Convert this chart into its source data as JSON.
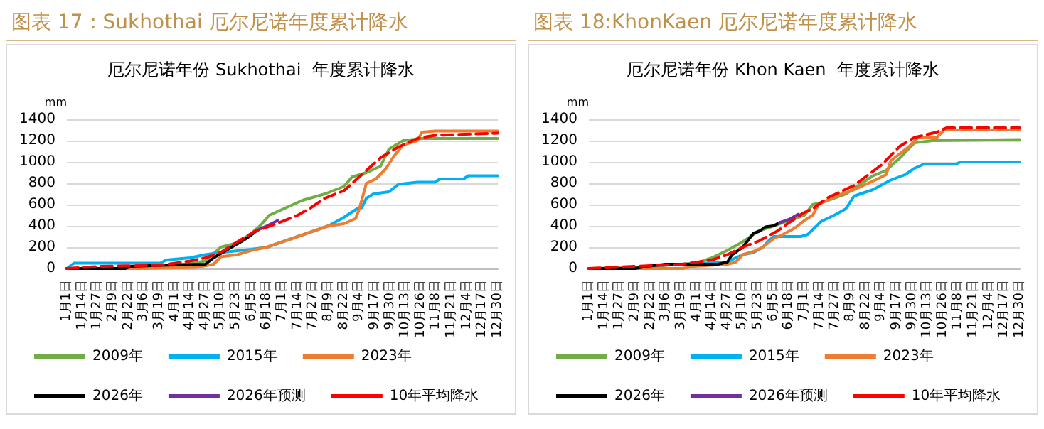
{
  "chart_data": [
    {
      "type": "line",
      "title": "图表 17：Sukhothai 厄尔尼诺年度累计降水",
      "subtitle": "厄尔尼诺年份 Sukhothai  年度累计降水",
      "ylabel": "mm",
      "xlim": [
        "--01-01",
        "--12-30"
      ],
      "ylim": [
        0,
        1400
      ],
      "yticks": [
        0,
        200,
        400,
        600,
        800,
        1000,
        1200,
        1400
      ],
      "xticks": [
        {
          "value": "--01-01",
          "label": "1月1日"
        },
        {
          "value": "--01-14",
          "label": "1月14日"
        },
        {
          "value": "--01-27",
          "label": "1月27日"
        },
        {
          "value": "--02-09",
          "label": "2月9日"
        },
        {
          "value": "--02-22",
          "label": "2月22日"
        },
        {
          "value": "--03-06",
          "label": "3月6日"
        },
        {
          "value": "--03-19",
          "label": "3月19日"
        },
        {
          "value": "--04-01",
          "label": "4月1日"
        },
        {
          "value": "--04-14",
          "label": "4月14日"
        },
        {
          "value": "--04-27",
          "label": "4月27日"
        },
        {
          "value": "--05-10",
          "label": "5月10日"
        },
        {
          "value": "--05-23",
          "label": "5月23日"
        },
        {
          "value": "--06-05",
          "label": "6月5日"
        },
        {
          "value": "--06-18",
          "label": "6月18日"
        },
        {
          "value": "--07-01",
          "label": "7月1日"
        },
        {
          "value": "--07-14",
          "label": "7月14日"
        },
        {
          "value": "--07-27",
          "label": "7月27日"
        },
        {
          "value": "--08-09",
          "label": "8月9日"
        },
        {
          "value": "--08-22",
          "label": "8月22日"
        },
        {
          "value": "--09-04",
          "label": "9月4日"
        },
        {
          "value": "--09-17",
          "label": "9月17日"
        },
        {
          "value": "--09-30",
          "label": "9月30日"
        },
        {
          "value": "--10-13",
          "label": "10月13日"
        },
        {
          "value": "--10-26",
          "label": "10月26日"
        },
        {
          "value": "--11-08",
          "label": "11月8日"
        },
        {
          "value": "--11-21",
          "label": "11月21日"
        },
        {
          "value": "--12-04",
          "label": "12月4日"
        },
        {
          "value": "--12-17",
          "label": "12月17日"
        },
        {
          "value": "--12-30",
          "label": "12月30日"
        }
      ],
      "grid": "y",
      "legend": "bottom",
      "marker": "none",
      "series": [
        {
          "name": "2009年",
          "color": "#70ad47",
          "x": [
            "--01-01",
            "--02-29",
            "--04-09",
            "--04-27",
            "--05-10",
            "--05-24",
            "--06-05",
            "--06-13",
            "--06-20",
            "--07-02",
            "--07-18",
            "--08-06",
            "--08-22",
            "--08-29",
            "--09-10",
            "--09-22",
            "--09-29",
            "--10-11",
            "--10-27",
            "--12-30"
          ],
          "values": [
            0,
            0,
            40,
            70,
            200,
            240,
            330,
            410,
            500,
            560,
            640,
            700,
            770,
            860,
            900,
            960,
            1120,
            1200,
            1220,
            1220
          ]
        },
        {
          "name": "2015年",
          "color": "#00b0f0",
          "x": [
            "--01-01",
            "--01-07",
            "--02-29",
            "--03-20",
            "--03-25",
            "--04-14",
            "--04-27",
            "--05-10",
            "--06-05",
            "--06-18",
            "--07-01",
            "--07-14",
            "--08-09",
            "--08-22",
            "--09-02",
            "--09-06",
            "--09-10",
            "--09-16",
            "--09-29",
            "--10-07",
            "--10-23",
            "--11-07",
            "--11-11",
            "--12-01",
            "--12-05",
            "--12-30"
          ],
          "values": [
            0,
            50,
            50,
            50,
            80,
            100,
            130,
            150,
            180,
            200,
            250,
            300,
            400,
            480,
            560,
            570,
            660,
            700,
            720,
            790,
            810,
            810,
            840,
            840,
            870,
            870
          ]
        },
        {
          "name": "2023年",
          "color": "#ed7d31",
          "x": [
            "--01-01",
            "--02-29",
            "--04-19",
            "--05-04",
            "--05-10",
            "--05-24",
            "--06-05",
            "--06-18",
            "--07-01",
            "--07-14",
            "--07-27",
            "--08-09",
            "--08-22",
            "--09-01",
            "--09-04",
            "--09-10",
            "--09-18",
            "--09-26",
            "--10-03",
            "--10-11",
            "--10-23",
            "--10-27",
            "--11-07",
            "--12-30"
          ],
          "values": [
            0,
            0,
            10,
            40,
            110,
            130,
            170,
            200,
            250,
            300,
            350,
            400,
            420,
            470,
            560,
            800,
            840,
            930,
            1050,
            1160,
            1200,
            1280,
            1290,
            1290
          ]
        },
        {
          "name": "2026年",
          "color": "#000000",
          "x": [
            "--01-01",
            "--02-19",
            "--02-24",
            "--03-20",
            "--04-27",
            "--05-04",
            "--05-10",
            "--05-19",
            "--05-27",
            "--06-03",
            "--06-10"
          ],
          "values": [
            0,
            0,
            20,
            30,
            40,
            100,
            140,
            200,
            250,
            300,
            360
          ]
        },
        {
          "name": "2026年预测",
          "color": "#7030a0",
          "x": [
            "--06-10",
            "--06-18",
            "--06-27"
          ],
          "values": [
            360,
            400,
            450
          ]
        },
        {
          "name": "10年平均降水",
          "color": "#ff0000",
          "line_style": "dashed",
          "x": [
            "--01-01",
            "--01-30",
            "--03-20",
            "--04-14",
            "--04-27",
            "--05-10",
            "--05-24",
            "--06-08",
            "--06-26",
            "--07-14",
            "--07-25",
            "--08-06",
            "--08-22",
            "--09-06",
            "--09-22",
            "--10-07",
            "--10-23",
            "--11-07",
            "--12-30"
          ],
          "values": [
            0,
            20,
            30,
            70,
            100,
            150,
            250,
            350,
            420,
            500,
            570,
            660,
            730,
            880,
            1040,
            1140,
            1220,
            1250,
            1270
          ]
        }
      ]
    },
    {
      "type": "line",
      "title": "图表 18:KhonKaen 厄尔尼诺年度累计降水",
      "subtitle": "厄尔尼诺年份 Khon Kaen  年度累计降水",
      "ylabel": "mm",
      "xlim": [
        "--01-01",
        "--12-30"
      ],
      "ylim": [
        0,
        1400
      ],
      "yticks": [
        0,
        200,
        400,
        600,
        800,
        1000,
        1200,
        1400
      ],
      "xticks": [
        {
          "value": "--01-01",
          "label": "1月1日"
        },
        {
          "value": "--01-14",
          "label": "1月14日"
        },
        {
          "value": "--01-27",
          "label": "1月27日"
        },
        {
          "value": "--02-09",
          "label": "2月9日"
        },
        {
          "value": "--02-22",
          "label": "2月22日"
        },
        {
          "value": "--03-06",
          "label": "3月6日"
        },
        {
          "value": "--03-19",
          "label": "3月19日"
        },
        {
          "value": "--04-01",
          "label": "4月1日"
        },
        {
          "value": "--04-14",
          "label": "4月14日"
        },
        {
          "value": "--04-27",
          "label": "4月27日"
        },
        {
          "value": "--05-10",
          "label": "5月10日"
        },
        {
          "value": "--05-23",
          "label": "5月23日"
        },
        {
          "value": "--06-05",
          "label": "6月5日"
        },
        {
          "value": "--06-18",
          "label": "6月18日"
        },
        {
          "value": "--07-01",
          "label": "7月1日"
        },
        {
          "value": "--07-14",
          "label": "7月14日"
        },
        {
          "value": "--07-27",
          "label": "7月27日"
        },
        {
          "value": "--08-09",
          "label": "8月9日"
        },
        {
          "value": "--08-22",
          "label": "8月22日"
        },
        {
          "value": "--09-04",
          "label": "9月4日"
        },
        {
          "value": "--09-17",
          "label": "9月17日"
        },
        {
          "value": "--09-30",
          "label": "9月30日"
        },
        {
          "value": "--10-13",
          "label": "10月13日"
        },
        {
          "value": "--10-26",
          "label": "10月26日"
        },
        {
          "value": "--11-08",
          "label": "11月8日"
        },
        {
          "value": "--11-21",
          "label": "11月21日"
        },
        {
          "value": "--12-04",
          "label": "12月4日"
        },
        {
          "value": "--12-17",
          "label": "12月17日"
        },
        {
          "value": "--12-30",
          "label": "12月30日"
        }
      ],
      "grid": "y",
      "legend": "bottom",
      "marker": "none",
      "series": [
        {
          "name": "2009年",
          "color": "#70ad47",
          "x": [
            "--01-01",
            "--02-22",
            "--03-06",
            "--04-01",
            "--04-14",
            "--04-27",
            "--05-10",
            "--05-23",
            "--06-05",
            "--06-18",
            "--07-01",
            "--07-08",
            "--07-16",
            "--08-05",
            "--08-28",
            "--09-08",
            "--09-20",
            "--10-02",
            "--10-17",
            "--12-30"
          ],
          "values": [
            0,
            10,
            30,
            50,
            100,
            170,
            250,
            350,
            400,
            450,
            500,
            600,
            620,
            700,
            870,
            920,
            1040,
            1180,
            1200,
            1210
          ]
        },
        {
          "name": "2015年",
          "color": "#00b0f0",
          "x": [
            "--01-01",
            "--02-19",
            "--02-29",
            "--04-09",
            "--04-27",
            "--05-04",
            "--05-10",
            "--05-19",
            "--05-27",
            "--05-31",
            "--06-05",
            "--06-28",
            "--07-04",
            "--07-15",
            "--07-28",
            "--08-05",
            "--08-12",
            "--08-28",
            "--09-12",
            "--09-24",
            "--10-02",
            "--10-10",
            "--11-06",
            "--11-10",
            "--12-30"
          ],
          "values": [
            0,
            0,
            30,
            50,
            60,
            100,
            130,
            150,
            200,
            250,
            300,
            300,
            320,
            440,
            510,
            560,
            680,
            740,
            830,
            880,
            940,
            980,
            980,
            1000,
            1000
          ]
        },
        {
          "name": "2023年",
          "color": "#ed7d31",
          "x": [
            "--01-01",
            "--03-20",
            "--03-30",
            "--04-27",
            "--05-04",
            "--05-10",
            "--05-19",
            "--05-27",
            "--06-05",
            "--06-13",
            "--06-23",
            "--07-01",
            "--07-08",
            "--07-13",
            "--07-28",
            "--08-12",
            "--08-28",
            "--09-08",
            "--09-12",
            "--09-20",
            "--09-28",
            "--10-05",
            "--10-21",
            "--10-27",
            "--12-30"
          ],
          "values": [
            0,
            0,
            20,
            40,
            60,
            130,
            160,
            200,
            280,
            320,
            380,
            450,
            500,
            600,
            680,
            740,
            820,
            880,
            1010,
            1080,
            1150,
            1230,
            1230,
            1300,
            1300
          ]
        },
        {
          "name": "2026年",
          "color": "#000000",
          "x": [
            "--01-01",
            "--02-09",
            "--02-19",
            "--03-06",
            "--03-20",
            "--04-19",
            "--04-27",
            "--05-01",
            "--05-10",
            "--05-19",
            "--05-24",
            "--05-29",
            "--06-05",
            "--06-10"
          ],
          "values": [
            0,
            0,
            20,
            40,
            40,
            40,
            60,
            130,
            200,
            330,
            350,
            390,
            400,
            430
          ]
        },
        {
          "name": "2026年预测",
          "color": "#7030a0",
          "x": [
            "--06-10",
            "--06-18",
            "--06-26"
          ],
          "values": [
            430,
            460,
            510
          ]
        },
        {
          "name": "10年平均降水",
          "color": "#ff0000",
          "line_style": "dashed",
          "x": [
            "--01-01",
            "--02-09",
            "--03-20",
            "--04-14",
            "--04-27",
            "--05-10",
            "--05-24",
            "--06-08",
            "--06-18",
            "--06-30",
            "--07-08",
            "--07-20",
            "--08-12",
            "--09-04",
            "--09-20",
            "--10-02",
            "--10-21",
            "--10-29",
            "--12-30"
          ],
          "values": [
            0,
            20,
            40,
            80,
            130,
            200,
            260,
            350,
            430,
            520,
            560,
            660,
            780,
            970,
            1150,
            1230,
            1280,
            1320,
            1320
          ]
        }
      ]
    }
  ]
}
